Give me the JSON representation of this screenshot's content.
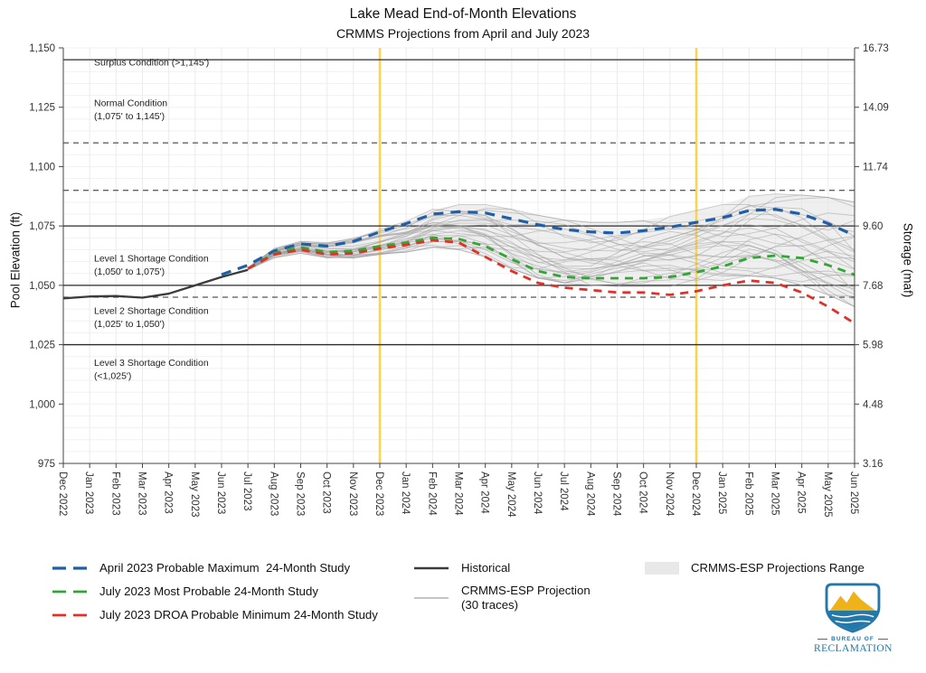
{
  "title": "Lake Mead End-of-Month Elevations",
  "subtitle": "CRMMS Projections from April and July 2023",
  "logo": {
    "bureau": "BUREAU OF",
    "name": "RECLAMATION"
  },
  "legend": {
    "items": [
      {
        "label": "April 2023 Probable Maximum  24-Month Study"
      },
      {
        "label": "July 2023 Most Probable 24-Month Study"
      },
      {
        "label": "July 2023 DROA Probable Minimum 24-Month Study"
      },
      {
        "label": "Historical"
      },
      {
        "label_line1": "CRMMS-ESP Projection",
        "label_line2": "(30 traces)"
      },
      {
        "label": "CRMMS-ESP Projections Range"
      }
    ]
  },
  "chart_data": {
    "type": "line",
    "title": "Lake Mead End-of-Month Elevations",
    "subtitle": "CRMMS Projections from April and July 2023",
    "ylabel_left": "Pool Elevation (ft)",
    "ylabel_right": "Storage (maf)",
    "ylim": [
      975,
      1150
    ],
    "x_labels": [
      "Dec 2022",
      "Jan 2023",
      "Feb 2023",
      "Mar 2023",
      "Apr 2023",
      "May 2023",
      "Jun 2023",
      "Jul 2023",
      "Aug 2023",
      "Sep 2023",
      "Oct 2023",
      "Nov 2023",
      "Dec 2023",
      "Jan 2024",
      "Feb 2024",
      "Mar 2024",
      "Apr 2024",
      "May 2024",
      "Jun 2024",
      "Jul 2024",
      "Aug 2024",
      "Sep 2024",
      "Oct 2024",
      "Nov 2024",
      "Dec 2024",
      "Jan 2025",
      "Feb 2025",
      "Mar 2025",
      "Apr 2025",
      "May 2025",
      "Jun 2025"
    ],
    "yticks": [
      {
        "elev": 975,
        "elev_label": "975",
        "storage_label": "3.16"
      },
      {
        "elev": 1000,
        "elev_label": "1,000",
        "storage_label": "4.48"
      },
      {
        "elev": 1025,
        "elev_label": "1,025",
        "storage_label": "5.98"
      },
      {
        "elev": 1050,
        "elev_label": "1,050",
        "storage_label": "7.68"
      },
      {
        "elev": 1075,
        "elev_label": "1,075",
        "storage_label": "9.60"
      },
      {
        "elev": 1100,
        "elev_label": "1,100",
        "storage_label": "11.74"
      },
      {
        "elev": 1125,
        "elev_label": "1,125",
        "storage_label": "14.09"
      },
      {
        "elev": 1150,
        "elev_label": "1,150",
        "storage_label": "16.73"
      }
    ],
    "vline_x_labels": [
      "Dec 2023",
      "Dec 2024"
    ],
    "conditions": {
      "solid_lines": [
        1145,
        1075,
        1050,
        1025
      ],
      "dashed_lines": [
        1110,
        1090,
        1045
      ],
      "labels": [
        {
          "text": "Surplus Condition (>1,145')",
          "elev": 1142.5
        },
        {
          "text": "Normal Condition",
          "elev": 1125.5
        },
        {
          "text": "(1,075' to 1,145')",
          "elev": 1120
        },
        {
          "text": "Level 1 Shortage Condition",
          "elev": 1060
        },
        {
          "text": "(1,050' to 1,075')",
          "elev": 1054.5
        },
        {
          "text": "Level 2 Shortage Condition",
          "elev": 1038
        },
        {
          "text": "(1,025' to 1,050')",
          "elev": 1032.5
        },
        {
          "text": "Level 3 Shortage Condition",
          "elev": 1016
        },
        {
          "text": "(<1,025')",
          "elev": 1010.5
        }
      ]
    },
    "colors": {
      "historical": "#3b3b3b",
      "april_max": "#1f5fa8",
      "july_most_probable": "#33a532",
      "july_droa_min": "#e03128",
      "esp_trace": "#a0a0a0",
      "esp_range_fill": "#e4e4e4",
      "marker_yellow": "#ffd34f",
      "condition_line": "#2b2b2b"
    },
    "esp_trace_count": 30,
    "series": [
      {
        "id": "historical",
        "name": "Historical",
        "color": "#3b3b3b",
        "width": 2.3,
        "dash": null,
        "start_index": 0,
        "values": [
          1044.5,
          1045.3,
          1045.5,
          1044.8,
          1046.5,
          1050,
          1053.5,
          1056.5
        ]
      },
      {
        "id": "april-2023-probable-maximum",
        "name": "April 2023 Probable Maximum 24-Month Study",
        "color": "#1f5fa8",
        "width": 3.2,
        "dash": "11 8",
        "start_index": 6,
        "values": [
          1054.5,
          1058.5,
          1064.5,
          1067.5,
          1066.5,
          1068.5,
          1072.5,
          1076,
          1080,
          1081,
          1080.5,
          1078,
          1075.5,
          1073.5,
          1072.5,
          1072,
          1073,
          1074.5,
          1076.5,
          1078.5,
          1081.5,
          1082,
          1080,
          1076,
          1071
        ]
      },
      {
        "id": "july-2023-most-probable",
        "name": "July 2023 Most Probable 24-Month Study",
        "color": "#33a532",
        "width": 2.8,
        "dash": "9 7",
        "start_index": 7,
        "values": [
          1057,
          1063.5,
          1066,
          1064,
          1064.5,
          1066.5,
          1068,
          1070,
          1069.5,
          1066.5,
          1061,
          1056,
          1053.5,
          1053,
          1053,
          1053,
          1053.5,
          1055.5,
          1058,
          1061.5,
          1062.5,
          1061.5,
          1058.5,
          1054.5
        ]
      },
      {
        "id": "july-2023-droa-probable-minimum",
        "name": "July 2023 DROA Probable Minimum 24-Month Study",
        "color": "#e03128",
        "width": 2.8,
        "dash": "9 7",
        "start_index": 7,
        "values": [
          1057,
          1063,
          1065,
          1063,
          1063.5,
          1065.5,
          1067,
          1069,
          1068,
          1062,
          1056,
          1051,
          1049,
          1048,
          1047,
          1047,
          1046,
          1047.5,
          1050,
          1052,
          1051,
          1047,
          1041,
          1034
        ]
      }
    ],
    "esp_range": {
      "start_index": 7,
      "min": [
        1056.5,
        1061.5,
        1063.5,
        1061.5,
        1061.5,
        1063,
        1064,
        1066,
        1065,
        1062,
        1057,
        1053,
        1051,
        1050,
        1049.5,
        1049.5,
        1049.5,
        1050.5,
        1052,
        1054,
        1053,
        1050,
        1046,
        1041
      ],
      "max": [
        1057.5,
        1065.5,
        1068.5,
        1068,
        1070,
        1073.5,
        1077,
        1082,
        1084,
        1084,
        1082,
        1079.5,
        1077.5,
        1076.5,
        1076.5,
        1077.5,
        1079,
        1081.5,
        1084,
        1087.5,
        1088.5,
        1088,
        1087,
        1085
      ]
    }
  }
}
